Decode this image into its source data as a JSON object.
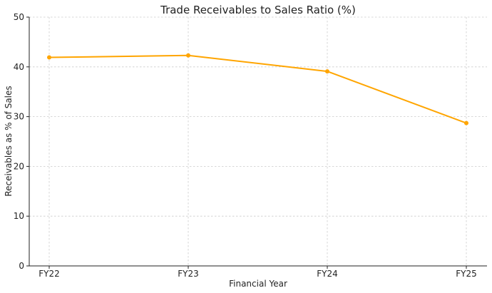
{
  "chart_data": {
    "type": "line",
    "title": "Trade Receivables to Sales Ratio (%)",
    "xlabel": "Financial Year",
    "ylabel": "Receivables as % of Sales",
    "categories": [
      "FY22",
      "FY23",
      "FY24",
      "FY25"
    ],
    "series": [
      {
        "values": [
          41.9,
          42.3,
          39.1,
          28.7
        ],
        "color": "#FFA500"
      }
    ],
    "ylim": [
      0,
      50
    ],
    "yticks": [
      0,
      10,
      20,
      30,
      40,
      50
    ],
    "grid": true,
    "legend": "none"
  }
}
